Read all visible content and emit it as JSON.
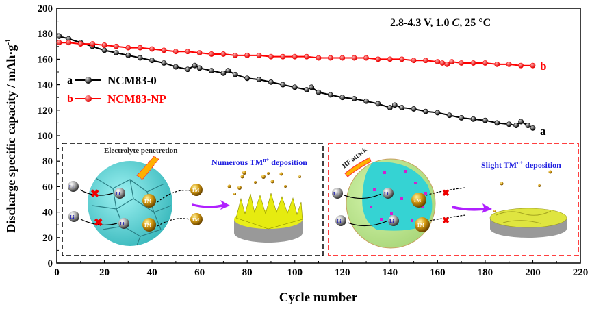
{
  "chart_data": {
    "type": "line",
    "xlabel": "Cycle number",
    "ylabel": "Discharge specific capacity / mAh·g",
    "ylabel_sup": "-1",
    "xlim": [
      0,
      220
    ],
    "ylim": [
      0,
      200
    ],
    "xticks": [
      0,
      20,
      40,
      60,
      80,
      100,
      120,
      140,
      160,
      180,
      200,
      220
    ],
    "yticks": [
      0,
      20,
      40,
      60,
      80,
      100,
      120,
      140,
      160,
      180,
      200
    ],
    "grid": false,
    "legend_position": "left-middle",
    "annotation": "2.8-4.3 V, 1.0 C, 25 °C",
    "annotation_parts": {
      "pre": "2.8-4.3 V, 1.0 ",
      "italic": "C",
      "post": ", 25 °C"
    },
    "series": [
      {
        "name": "NCM83-0",
        "tag": "a",
        "color": "#000000",
        "x": [
          1,
          5,
          10,
          15,
          20,
          25,
          30,
          35,
          40,
          45,
          50,
          55,
          58,
          60,
          65,
          70,
          72,
          75,
          80,
          85,
          90,
          95,
          100,
          105,
          107,
          110,
          115,
          120,
          125,
          130,
          135,
          140,
          142,
          145,
          150,
          155,
          160,
          165,
          170,
          175,
          180,
          185,
          190,
          193,
          195,
          198,
          200
        ],
        "y": [
          178,
          176,
          173,
          170,
          167,
          165,
          163,
          161,
          159,
          157,
          154,
          152,
          155,
          153,
          151,
          149,
          151,
          148,
          145,
          144,
          142,
          140,
          138,
          136,
          138,
          134,
          132,
          130,
          129,
          127,
          125,
          122,
          124,
          122,
          121,
          119,
          118,
          116,
          114,
          113,
          112,
          110,
          109,
          108,
          111,
          108,
          106
        ]
      },
      {
        "name": "NCM83-NP",
        "tag": "b",
        "color": "#ff0000",
        "x": [
          1,
          5,
          10,
          15,
          20,
          25,
          30,
          35,
          40,
          45,
          50,
          55,
          60,
          65,
          70,
          75,
          80,
          85,
          90,
          95,
          100,
          105,
          110,
          115,
          120,
          125,
          130,
          135,
          140,
          145,
          150,
          155,
          160,
          162,
          164,
          166,
          170,
          175,
          180,
          185,
          190,
          195,
          200
        ],
        "y": [
          173,
          173,
          172,
          172,
          171,
          170,
          169,
          169,
          168,
          167,
          166,
          166,
          165,
          164,
          164,
          163,
          163,
          163,
          162,
          162,
          162,
          162,
          161,
          161,
          161,
          161,
          161,
          160,
          160,
          160,
          159,
          159,
          158,
          157,
          156,
          158,
          157,
          157,
          157,
          156,
          156,
          155,
          155
        ]
      }
    ]
  },
  "insets": {
    "left": {
      "penetration_label": "Electrolyte penetretion",
      "deposition_label": "Numerous TM",
      "deposition_sup": "n+",
      "deposition_suffix": " deposition",
      "li_label": "Li",
      "tm_label": "TM",
      "border_color": "#000000"
    },
    "right": {
      "attack_label": "HF attack",
      "deposition_label": "Slight TM",
      "deposition_sup": "n+",
      "deposition_suffix": " deposition",
      "li_label": "Li",
      "tm_label": "TM",
      "border_color": "#ff0000"
    }
  }
}
